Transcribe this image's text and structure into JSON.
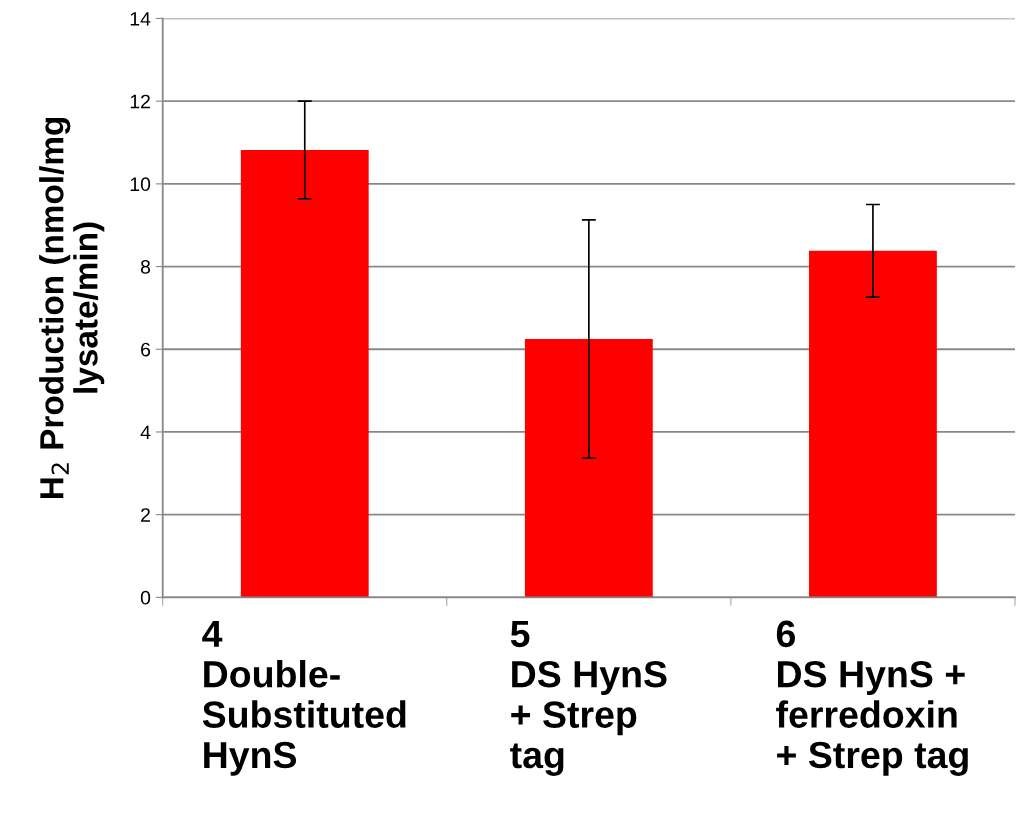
{
  "chart_data": {
    "type": "bar",
    "ylabel": "H$_{2}$ Production (nmol/mg\nlysate/min)",
    "categories": [
      "4\nDouble-\nSubstituted\nHynS",
      "5\nDS HynS\n+ Strep\ntag",
      "6\nDS HynS +\nferredoxin\n+ Strep tag"
    ],
    "values": [
      10.82,
      6.25,
      8.38
    ],
    "errors": [
      1.18,
      2.88,
      1.12
    ],
    "color": "#ff0000",
    "ylim": [
      0,
      14
    ],
    "yticks": [
      0,
      2,
      4,
      6,
      8,
      10,
      12,
      14
    ],
    "grid": "y"
  }
}
